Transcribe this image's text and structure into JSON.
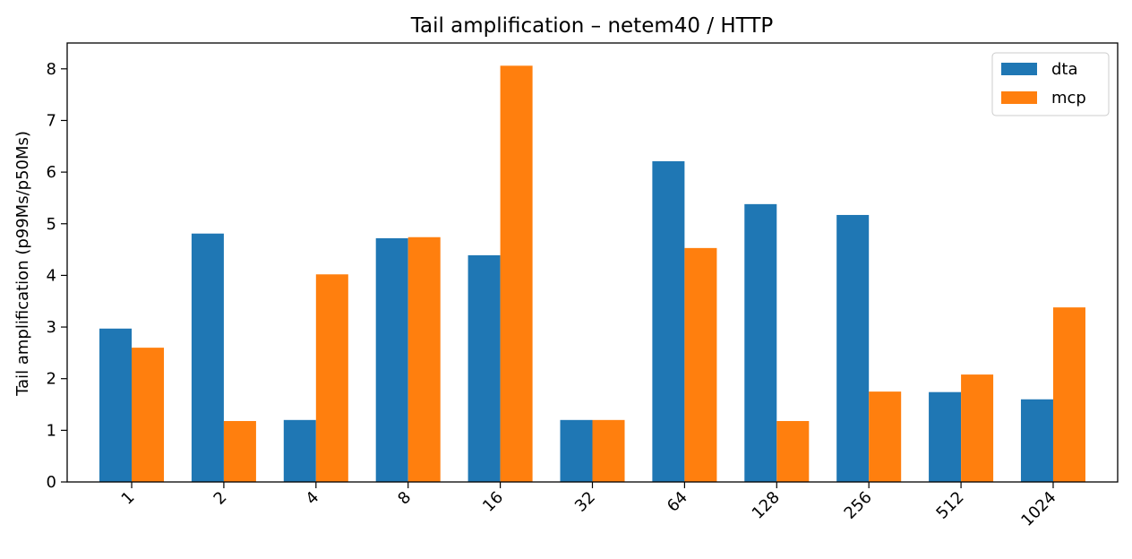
{
  "chart_data": {
    "type": "bar",
    "title": "Tail amplification – netem40 / HTTP",
    "xlabel": "",
    "ylabel": "Tail amplification (p99Ms/p50Ms)",
    "categories": [
      "1",
      "2",
      "4",
      "8",
      "16",
      "32",
      "64",
      "128",
      "256",
      "512",
      "1024"
    ],
    "series": [
      {
        "name": "dta",
        "color": "#1f77b4",
        "values": [
          2.97,
          4.81,
          1.2,
          4.72,
          4.39,
          1.2,
          6.21,
          5.38,
          5.17,
          1.74,
          1.6
        ]
      },
      {
        "name": "mcp",
        "color": "#ff7f0e",
        "values": [
          2.6,
          1.18,
          4.02,
          4.74,
          8.06,
          1.2,
          4.53,
          1.18,
          1.75,
          2.08,
          3.38
        ]
      }
    ],
    "ylim": [
      0,
      8.5
    ],
    "yticks": [
      0,
      1,
      2,
      3,
      4,
      5,
      6,
      7,
      8
    ],
    "grid": false,
    "legend_position": "top-right"
  }
}
